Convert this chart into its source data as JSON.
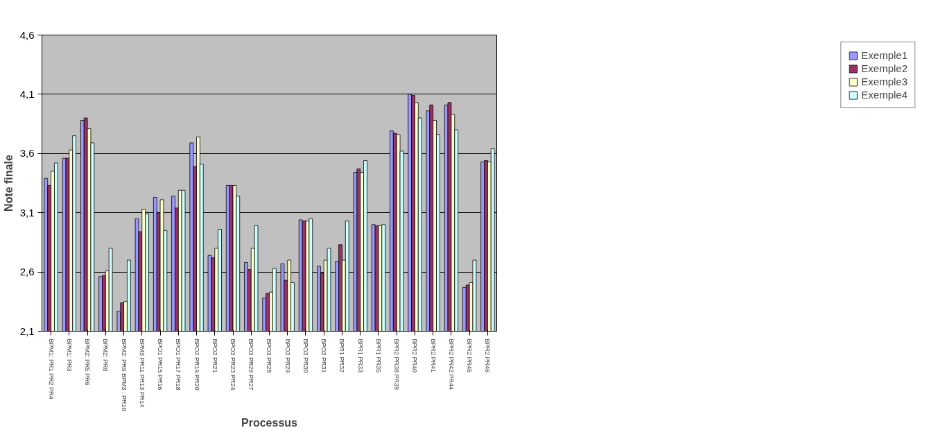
{
  "chart_data": {
    "type": "bar",
    "xlabel": "Processus",
    "ylabel": "Note finale",
    "categories": [
      "BPM1: PR1 PR2 PR4",
      "BPM1: PR3",
      "BPM2: PR5 PR6",
      "BPM2: PR8",
      "BPM2: PR9 BPM3 : PR10",
      "BPM3 PR11 PR13 PR14",
      "BPO1 PR15 PR16",
      "BPO1 PR17 PR18",
      "BPO2 PR19 PR20",
      "BPO2 PR21",
      "BPO3 PR23 PR24",
      "BPO3 PR26 PR27",
      "BPO3 PR28",
      "BPO3 PR29",
      "BPO3 PR30",
      "BPO3 PR31",
      "BPR1 PR32",
      "BPR1 PR33",
      "BPR1 PR35",
      "BPR2 PR38 PR39",
      "BPR2 PR40",
      "BPR2 PR41",
      "BPR2 PR42 PR44",
      "BPR2 PR45",
      "BPR2 PR46"
    ],
    "series": [
      {
        "name": "Exemple1",
        "color": "#9999ff",
        "values": [
          3.39,
          3.56,
          3.88,
          2.56,
          2.27,
          3.05,
          3.23,
          3.24,
          3.69,
          2.74,
          3.33,
          2.68,
          2.38,
          2.67,
          3.04,
          2.65,
          2.69,
          3.44,
          3.0,
          3.79,
          4.1,
          3.96,
          4.01,
          2.47,
          3.53
        ]
      },
      {
        "name": "Exemple2",
        "color": "#993366",
        "values": [
          3.33,
          3.56,
          3.9,
          2.57,
          2.34,
          2.94,
          3.1,
          3.14,
          3.49,
          2.72,
          3.33,
          2.62,
          2.42,
          2.53,
          3.03,
          2.59,
          2.83,
          3.47,
          2.99,
          3.77,
          4.09,
          4.01,
          4.03,
          2.49,
          3.54
        ]
      },
      {
        "name": "Exemple3",
        "color": "#ffffcc",
        "values": [
          3.45,
          3.63,
          3.81,
          2.61,
          2.35,
          3.13,
          3.21,
          3.29,
          3.74,
          2.8,
          3.33,
          2.8,
          2.43,
          2.7,
          3.03,
          2.7,
          2.7,
          3.44,
          2.99,
          3.76,
          4.03,
          3.88,
          3.93,
          2.51,
          3.53
        ]
      },
      {
        "name": "Exemple4",
        "color": "#ccffff",
        "values": [
          3.52,
          3.75,
          3.69,
          2.8,
          2.7,
          3.09,
          2.95,
          3.29,
          3.51,
          2.96,
          3.24,
          2.99,
          2.63,
          2.51,
          3.05,
          2.8,
          3.03,
          3.54,
          3.0,
          3.62,
          3.9,
          3.76,
          3.8,
          2.7,
          3.64
        ]
      }
    ],
    "ylim": [
      2.1,
      4.6
    ],
    "yticks": [
      {
        "value": 2.1,
        "label": "2,1"
      },
      {
        "value": 2.6,
        "label": "2,6"
      },
      {
        "value": 3.1,
        "label": "3,1"
      },
      {
        "value": 3.6,
        "label": "3,6"
      },
      {
        "value": 4.1,
        "label": "4,1"
      },
      {
        "value": 4.6,
        "label": "4,6"
      }
    ],
    "grid": "y",
    "legend": "right"
  }
}
